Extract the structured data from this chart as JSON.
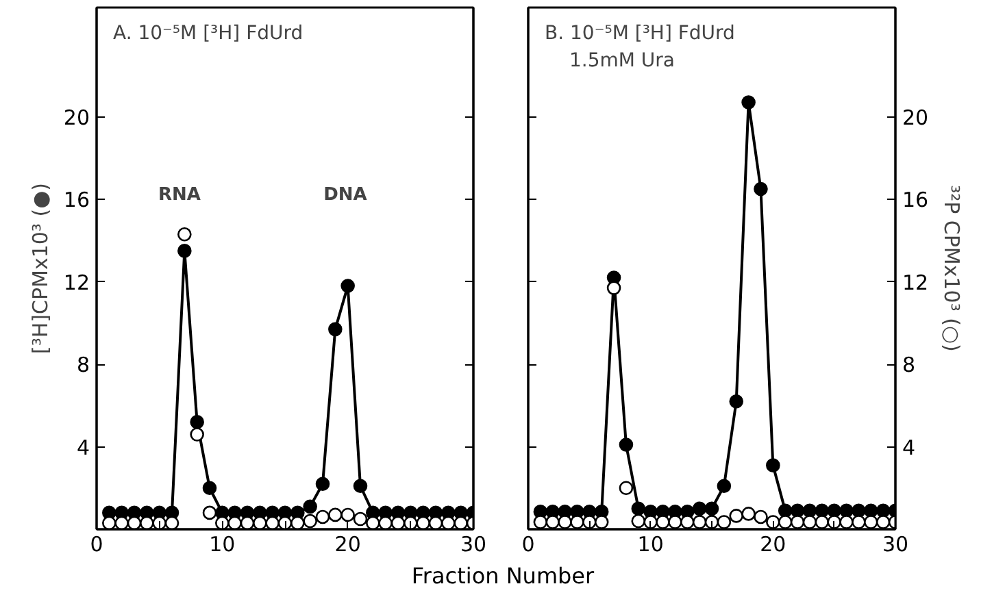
{
  "chart_data": [
    {
      "type": "line",
      "title": "A. 10⁻⁵M [³H] FdUrd",
      "xlabel": "Fraction Number",
      "ylabel": "[³H]CPMx10³ (●)",
      "x": [
        1,
        2,
        3,
        4,
        5,
        6,
        7,
        8,
        9,
        10,
        11,
        12,
        13,
        14,
        15,
        16,
        17,
        18,
        19,
        20,
        21,
        22,
        23,
        24,
        25,
        26,
        27,
        28,
        29,
        30
      ],
      "series": [
        {
          "type": "line",
          "color": "#000000",
          "values": [
            0.8,
            0.8,
            0.8,
            0.8,
            0.8,
            0.8,
            13.5,
            5.2,
            2.0,
            0.8,
            0.8,
            0.8,
            0.8,
            0.8,
            0.8,
            0.8,
            1.1,
            2.2,
            9.7,
            11.8,
            2.1,
            0.8,
            0.8,
            0.8,
            0.8,
            0.8,
            0.8,
            0.8,
            0.8,
            0.8
          ]
        },
        {
          "type": "scatter",
          "color": "#ffffff",
          "values": [
            0.3,
            0.3,
            0.3,
            0.3,
            0.3,
            0.3,
            14.3,
            4.6,
            0.8,
            0.3,
            0.3,
            0.3,
            0.3,
            0.3,
            0.3,
            0.3,
            0.4,
            0.6,
            0.7,
            0.7,
            0.5,
            0.3,
            0.3,
            0.3,
            0.3,
            0.3,
            0.3,
            0.3,
            0.3,
            0.3
          ]
        }
      ],
      "annotations": [
        "RNA",
        "DNA"
      ],
      "xlim": [
        0,
        30
      ],
      "xticks": [
        0,
        {
          "value": 5,
          "label": null
        },
        10,
        {
          "value": 15,
          "label": null
        },
        20,
        {
          "value": 25,
          "label": null
        },
        30
      ],
      "ylim": [
        0,
        25.3
      ],
      "yticks": [
        4,
        8,
        12,
        16,
        20
      ],
      "marker": "circle",
      "grid": false
    },
    {
      "type": "line",
      "title": "B. 10⁻⁵M [³H] FdUrd",
      "subtitle": "1.5mM Ura",
      "y2label": "³²P CPMx10³ (○)",
      "x": [
        1,
        2,
        3,
        4,
        5,
        6,
        7,
        8,
        9,
        10,
        11,
        12,
        13,
        14,
        15,
        16,
        17,
        18,
        19,
        20,
        21,
        22,
        23,
        24,
        25,
        26,
        27,
        28,
        29,
        30
      ],
      "series": [
        {
          "type": "line",
          "axis": "y2",
          "color": "#000000",
          "values": [
            0.85,
            0.85,
            0.85,
            0.85,
            0.85,
            0.85,
            12.2,
            4.1,
            1.0,
            0.85,
            0.85,
            0.85,
            0.85,
            1.0,
            1.0,
            2.1,
            6.2,
            20.7,
            16.5,
            3.1,
            0.9,
            0.9,
            0.9,
            0.9,
            0.9,
            0.9,
            0.9,
            0.9,
            0.9,
            0.9
          ]
        },
        {
          "type": "scatter",
          "axis": "y2",
          "color": "#ffffff",
          "values": [
            0.35,
            0.35,
            0.35,
            0.35,
            0.35,
            0.35,
            11.7,
            2.0,
            0.4,
            0.35,
            0.35,
            0.35,
            0.35,
            0.35,
            0.35,
            0.35,
            0.65,
            0.75,
            0.6,
            0.35,
            0.35,
            0.35,
            0.35,
            0.35,
            0.35,
            0.35,
            0.35,
            0.35,
            0.35,
            0.35
          ]
        }
      ],
      "xlim": [
        0,
        30
      ],
      "xticks": [
        0,
        {
          "value": 5,
          "label": null
        },
        10,
        {
          "value": 15,
          "label": null
        },
        20,
        {
          "value": 25,
          "label": null
        },
        30
      ],
      "y2lim": [
        0,
        25.3
      ],
      "y2ticks": [
        4,
        8,
        12,
        16,
        20
      ],
      "marker": "circle",
      "grid": false
    }
  ]
}
